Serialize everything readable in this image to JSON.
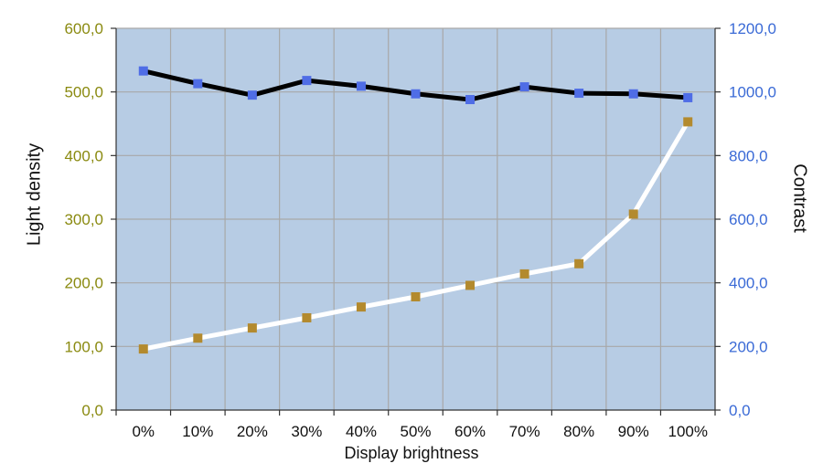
{
  "chart_data": {
    "type": "line",
    "title": "",
    "xlabel": "Display brightness",
    "ylabel_left": "Light density",
    "ylabel_right": "Contrast",
    "categories": [
      "0%",
      "10%",
      "20%",
      "30%",
      "40%",
      "50%",
      "60%",
      "70%",
      "80%",
      "90%",
      "100%"
    ],
    "ylim_left": [
      0,
      600
    ],
    "ylim_right": [
      0,
      1200
    ],
    "yticks_left": [
      "0,0",
      "100,0",
      "200,0",
      "300,0",
      "400,0",
      "500,0",
      "600,0"
    ],
    "yticks_right": [
      "0,0",
      "200,0",
      "400,0",
      "600,0",
      "800,0",
      "1000,0",
      "1200,0"
    ],
    "grid": true,
    "series": [
      {
        "axis": "left",
        "line_color": "#000000",
        "marker_color": "#4f6de6",
        "values": [
          533,
          513,
          495,
          518,
          509,
          497,
          488,
          508,
          498,
          497,
          491
        ]
      },
      {
        "axis": "right",
        "line_color": "#ffffff",
        "marker_color": "#b38a2e",
        "values": [
          192,
          226,
          258,
          290,
          324,
          356,
          392,
          428,
          460,
          616,
          906
        ]
      }
    ]
  },
  "colors": {
    "plot_background": "#b7cce4",
    "gridline": "#a8a8a8",
    "left_axis_text": "#8a8a10",
    "right_axis_text": "#3a6ad6"
  }
}
